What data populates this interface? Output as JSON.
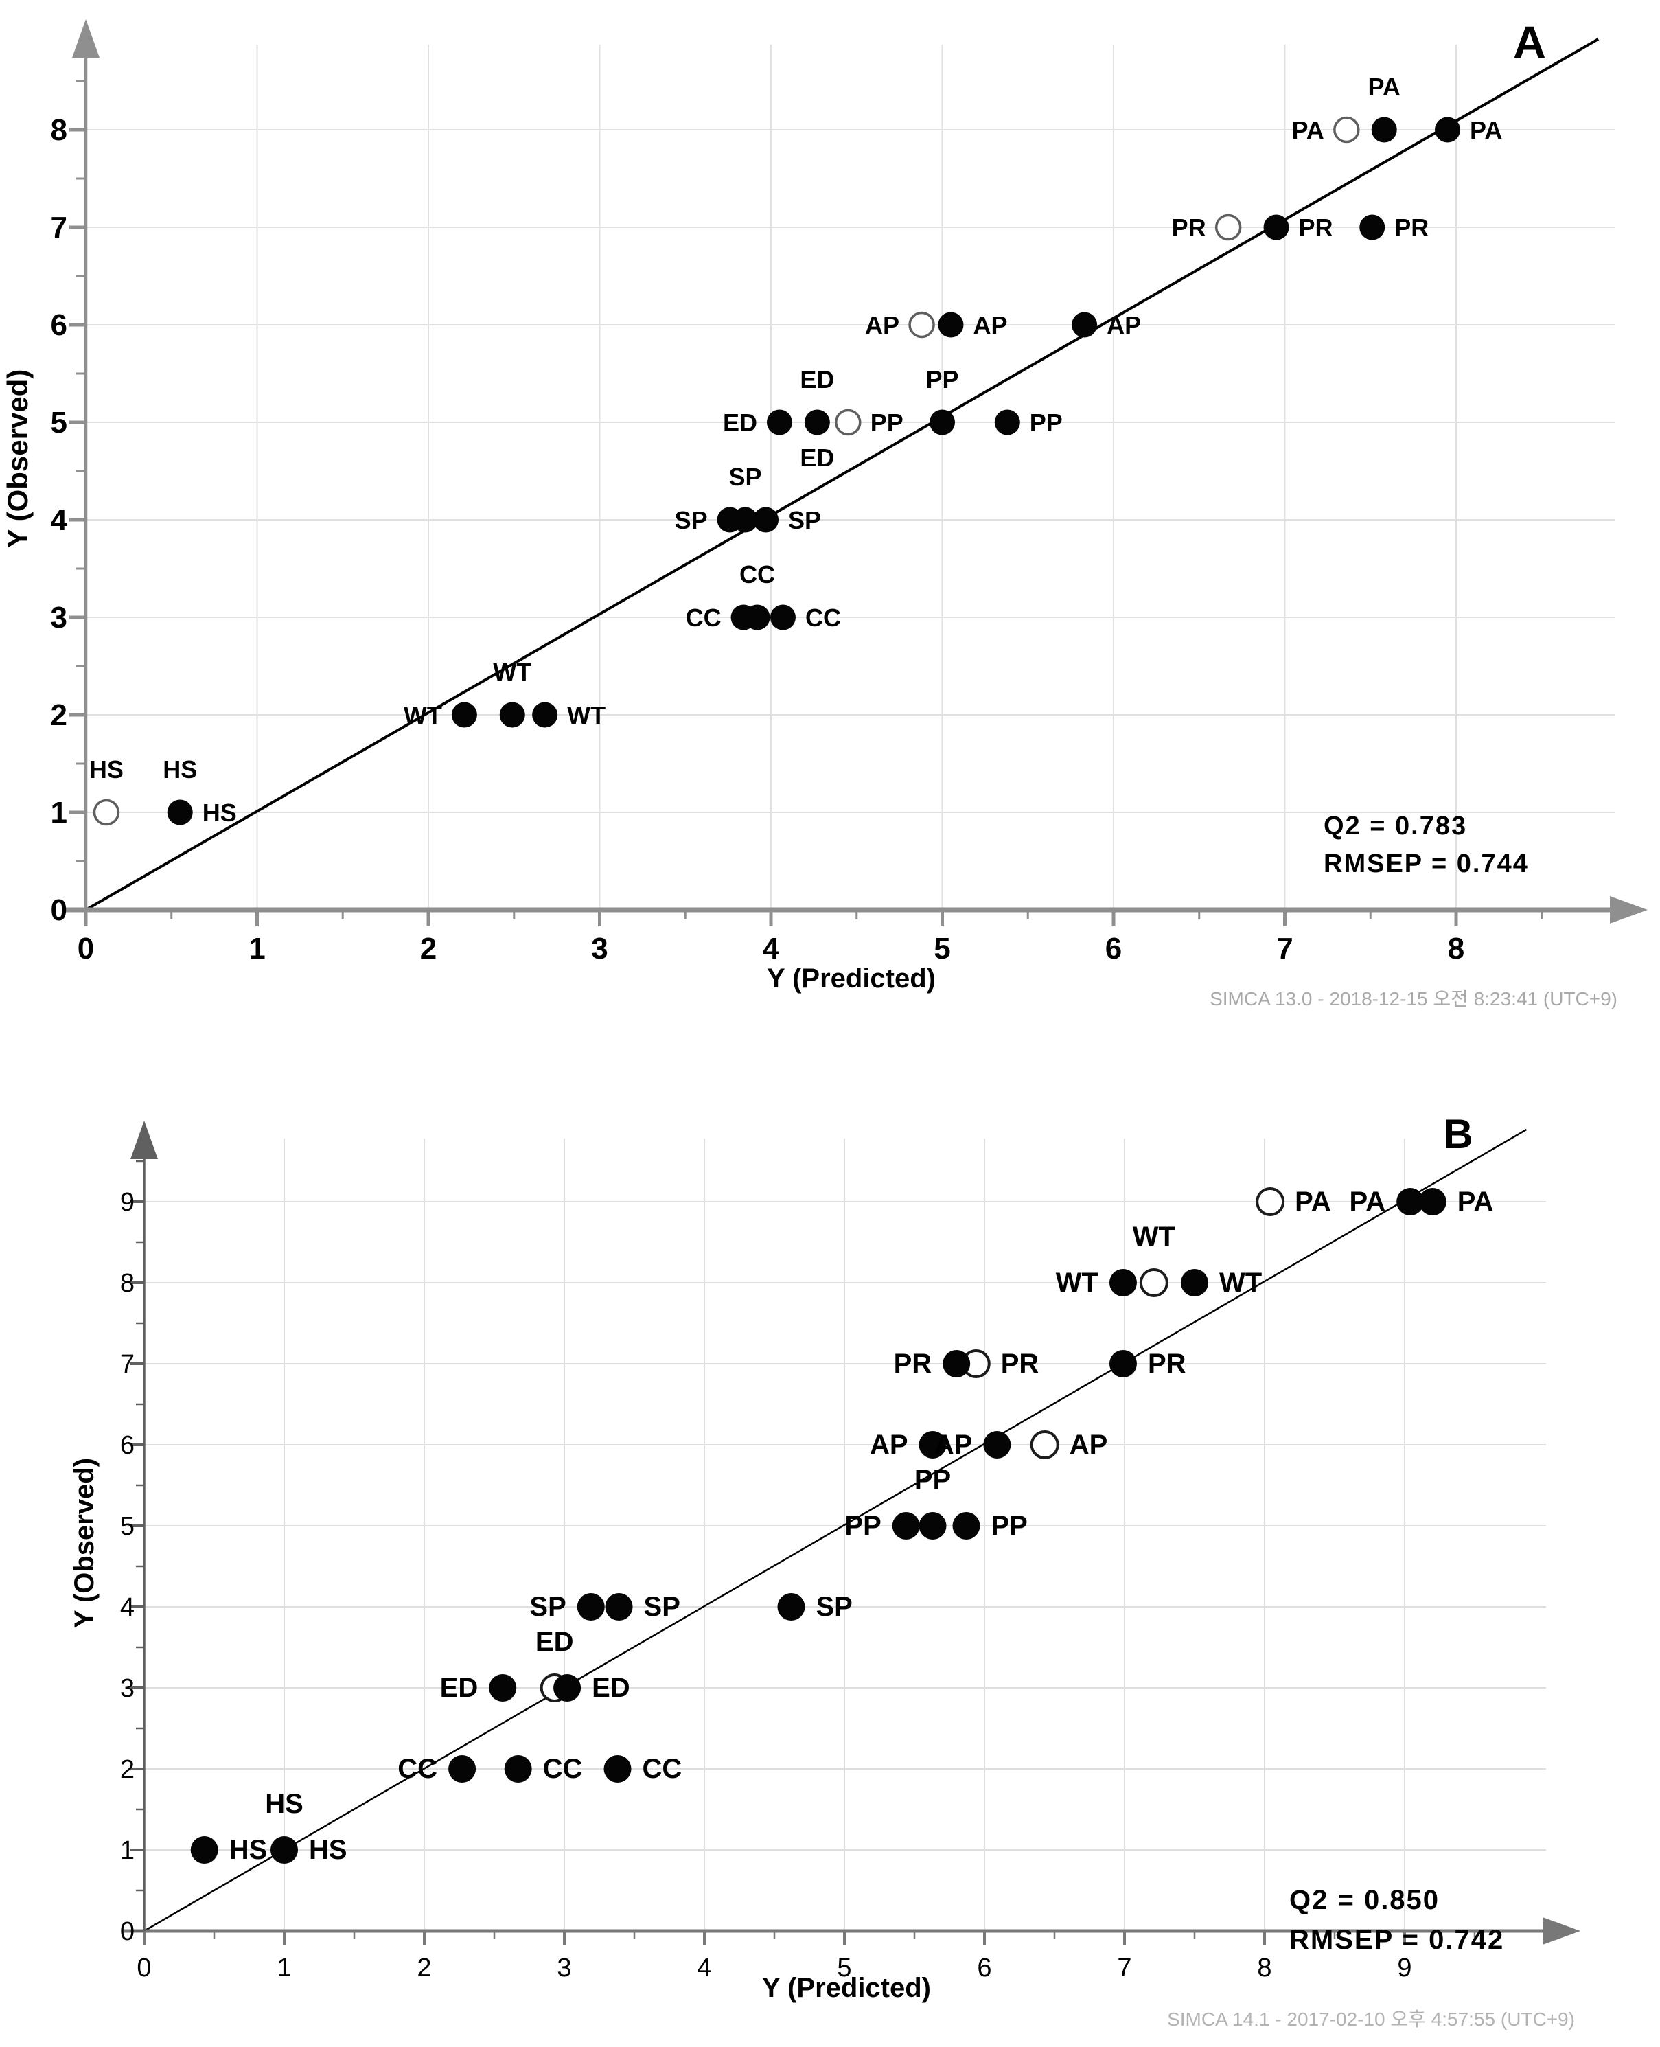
{
  "page": {
    "background": "#ffffff",
    "text_color": "#000000",
    "grid_color": "#e0e0e0",
    "axis_color": "#8f8f8f",
    "footer_color": "#a9a9a9"
  },
  "chart_data": [
    {
      "panel_label": "A",
      "type": "scatter",
      "xlabel": "Y (Predicted)",
      "ylabel": "Y (Observed)",
      "x_ticks": [
        0,
        1,
        2,
        3,
        4,
        5,
        6,
        7,
        8
      ],
      "y_ticks": [
        0,
        1,
        2,
        3,
        4,
        5,
        6,
        7,
        8
      ],
      "minor_tick_step": 0.5,
      "xlim": [
        0,
        8.95
      ],
      "ylim": [
        0,
        9.0
      ],
      "grid": true,
      "identity_line": {
        "x1": 0,
        "y1": 0,
        "x2": 8.83,
        "y2": 8.93
      },
      "stats": {
        "q2": "Q2 = 0.783",
        "rmsep": "RMSEP = 0.744"
      },
      "footer": "SIMCA 13.0 - 2018-12-15 오전 8:23:41 (UTC+9)",
      "points": [
        {
          "g": "HS",
          "x": 0.12,
          "y": 1,
          "open": true,
          "lbl": [
            "above"
          ]
        },
        {
          "g": "HS",
          "x": 0.55,
          "y": 1,
          "open": false,
          "lbl": [
            "above",
            "right"
          ]
        },
        {
          "g": "WT",
          "x": 2.21,
          "y": 2,
          "open": false,
          "lbl": [
            "left"
          ]
        },
        {
          "g": "WT",
          "x": 2.49,
          "y": 2,
          "open": false,
          "lbl": [
            "above"
          ]
        },
        {
          "g": "WT",
          "x": 2.68,
          "y": 2,
          "open": false,
          "lbl": [
            "right"
          ]
        },
        {
          "g": "CC",
          "x": 3.84,
          "y": 3,
          "open": false,
          "lbl": [
            "left"
          ]
        },
        {
          "g": "CC",
          "x": 3.92,
          "y": 3,
          "open": false,
          "lbl": [
            "above"
          ]
        },
        {
          "g": "CC",
          "x": 4.07,
          "y": 3,
          "open": false,
          "lbl": [
            "right"
          ]
        },
        {
          "g": "SP",
          "x": 3.76,
          "y": 4,
          "open": false,
          "lbl": [
            "left"
          ]
        },
        {
          "g": "SP",
          "x": 3.85,
          "y": 4,
          "open": false,
          "lbl": [
            "above"
          ]
        },
        {
          "g": "SP",
          "x": 3.97,
          "y": 4,
          "open": false,
          "lbl": [
            "right"
          ]
        },
        {
          "g": "ED",
          "x": 4.05,
          "y": 5,
          "open": false,
          "lbl": [
            "left"
          ]
        },
        {
          "g": "ED",
          "x": 4.27,
          "y": 5,
          "open": false,
          "lbl": [
            "above",
            "below"
          ]
        },
        {
          "g": "PP",
          "x": 4.45,
          "y": 5,
          "open": true,
          "lbl": [
            "right"
          ]
        },
        {
          "g": "PP",
          "x": 5.0,
          "y": 5,
          "open": false,
          "lbl": [
            "above"
          ]
        },
        {
          "g": "PP",
          "x": 5.38,
          "y": 5,
          "open": false,
          "lbl": [
            "right"
          ]
        },
        {
          "g": "AP",
          "x": 4.88,
          "y": 6,
          "open": true,
          "lbl": [
            "left"
          ]
        },
        {
          "g": "AP",
          "x": 5.05,
          "y": 6,
          "open": false,
          "lbl": [
            "right"
          ]
        },
        {
          "g": "AP",
          "x": 5.83,
          "y": 6,
          "open": false,
          "lbl": [
            "right"
          ]
        },
        {
          "g": "PR",
          "x": 6.67,
          "y": 7,
          "open": true,
          "lbl": [
            "left"
          ]
        },
        {
          "g": "PR",
          "x": 6.95,
          "y": 7,
          "open": false,
          "lbl": [
            "right"
          ]
        },
        {
          "g": "PR",
          "x": 7.51,
          "y": 7,
          "open": false,
          "lbl": [
            "right"
          ]
        },
        {
          "g": "PA",
          "x": 7.36,
          "y": 8,
          "open": true,
          "lbl": [
            "left"
          ]
        },
        {
          "g": "PA",
          "x": 7.58,
          "y": 8,
          "open": false,
          "lbl": [
            "above"
          ]
        },
        {
          "g": "PA",
          "x": 7.95,
          "y": 8,
          "open": false,
          "lbl": [
            "right"
          ]
        }
      ]
    },
    {
      "panel_label": "B",
      "type": "scatter",
      "xlabel": "Y (Predicted)",
      "ylabel": "Y (Observed)",
      "x_ticks": [
        0,
        1,
        2,
        3,
        4,
        5,
        6,
        7,
        8,
        9
      ],
      "y_ticks": [
        0,
        1,
        2,
        3,
        4,
        5,
        6,
        7,
        8,
        9
      ],
      "minor_tick_step": 0.5,
      "xlim": [
        0,
        9.95
      ],
      "ylim": [
        0,
        10.0
      ],
      "grid": true,
      "identity_line": {
        "x1": 0,
        "y1": 0,
        "x2": 9.87,
        "y2": 9.89
      },
      "stats": {
        "q2": "Q2 = 0.850",
        "rmsep": "RMSEP = 0.742"
      },
      "footer": "SIMCA 14.1 - 2017-02-10 오후 4:57:55 (UTC+9)",
      "points": [
        {
          "g": "HS",
          "x": 0.43,
          "y": 1,
          "open": false,
          "lbl": [
            "right"
          ]
        },
        {
          "g": "HS",
          "x": 1.0,
          "y": 1,
          "open": false,
          "lbl": [
            "above",
            "right"
          ]
        },
        {
          "g": "CC",
          "x": 2.27,
          "y": 2,
          "open": false,
          "lbl": [
            "left"
          ]
        },
        {
          "g": "CC",
          "x": 2.67,
          "y": 2,
          "open": false,
          "lbl": [
            "right"
          ]
        },
        {
          "g": "CC",
          "x": 3.38,
          "y": 2,
          "open": false,
          "lbl": [
            "right"
          ]
        },
        {
          "g": "ED",
          "x": 2.56,
          "y": 3,
          "open": false,
          "lbl": [
            "left"
          ]
        },
        {
          "g": "ED",
          "x": 2.93,
          "y": 3,
          "open": true,
          "lbl": [
            "above"
          ]
        },
        {
          "g": "ED",
          "x": 3.02,
          "y": 3,
          "open": false,
          "lbl": [
            "right"
          ]
        },
        {
          "g": "SP",
          "x": 3.19,
          "y": 4,
          "open": false,
          "lbl": [
            "left"
          ]
        },
        {
          "g": "SP",
          "x": 3.39,
          "y": 4,
          "open": false,
          "lbl": [
            "right"
          ]
        },
        {
          "g": "SP",
          "x": 4.62,
          "y": 4,
          "open": false,
          "lbl": [
            "right"
          ]
        },
        {
          "g": "PP",
          "x": 5.44,
          "y": 5,
          "open": false,
          "lbl": [
            "left"
          ]
        },
        {
          "g": "PP",
          "x": 5.63,
          "y": 5,
          "open": false,
          "lbl": [
            "above"
          ]
        },
        {
          "g": "PP",
          "x": 5.87,
          "y": 5,
          "open": false,
          "lbl": [
            "right"
          ]
        },
        {
          "g": "AP",
          "x": 5.63,
          "y": 6,
          "open": false,
          "lbl": [
            "left"
          ]
        },
        {
          "g": "AP",
          "x": 6.09,
          "y": 6,
          "open": false,
          "lbl": [
            "left"
          ]
        },
        {
          "g": "AP",
          "x": 6.43,
          "y": 6,
          "open": true,
          "lbl": [
            "right"
          ]
        },
        {
          "g": "PR",
          "x": 5.94,
          "y": 7,
          "open": true,
          "lbl": [
            "right"
          ]
        },
        {
          "g": "PR",
          "x": 5.8,
          "y": 7,
          "open": false,
          "lbl": [
            "left"
          ]
        },
        {
          "g": "PR",
          "x": 6.99,
          "y": 7,
          "open": false,
          "lbl": [
            "right"
          ]
        },
        {
          "g": "WT",
          "x": 6.99,
          "y": 8,
          "open": false,
          "lbl": [
            "left"
          ]
        },
        {
          "g": "WT",
          "x": 7.21,
          "y": 8,
          "open": true,
          "lbl": [
            "above"
          ]
        },
        {
          "g": "WT",
          "x": 7.5,
          "y": 8,
          "open": false,
          "lbl": [
            "right"
          ]
        },
        {
          "g": "PA",
          "x": 8.04,
          "y": 9,
          "open": true,
          "lbl": [
            "right"
          ]
        },
        {
          "g": "PA",
          "x": 9.04,
          "y": 9,
          "open": false,
          "lbl": [
            "left"
          ]
        },
        {
          "g": "PA",
          "x": 9.2,
          "y": 9,
          "open": false,
          "lbl": [
            "right"
          ]
        }
      ]
    }
  ]
}
